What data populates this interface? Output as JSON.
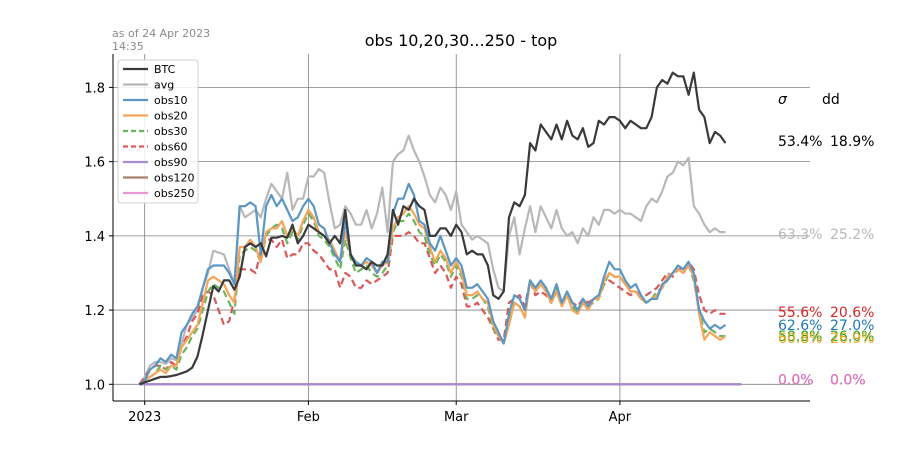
{
  "as_of": {
    "line1": "as of 24 Apr 2023",
    "line2": "14:35"
  },
  "chart_data": {
    "type": "line",
    "title": "obs 10,20,30...250 - top",
    "xlabel": "",
    "ylabel": "",
    "x_start": "2022-12-31",
    "x_end": "2023-04-24",
    "xlim": [
      "2022-12-26",
      "2023-05-07"
    ],
    "ylim": [
      0.955,
      1.89
    ],
    "x_ticks": [
      {
        "date": "2023-01-01",
        "label": "2023"
      },
      {
        "date": "2023-02-01",
        "label": "Feb"
      },
      {
        "date": "2023-03-01",
        "label": "Mar"
      },
      {
        "date": "2023-04-01",
        "label": "Apr"
      }
    ],
    "y_ticks": [
      1.0,
      1.2,
      1.4,
      1.6,
      1.8
    ],
    "y_tick_labels": [
      "1.0",
      "1.2",
      "1.4",
      "1.6",
      "1.8"
    ],
    "grid": true,
    "legend_position": "top-left",
    "stats_header": {
      "sigma": "σ",
      "dd": "dd"
    },
    "series": [
      {
        "name": "BTC",
        "color": "#3a3a3a",
        "dash": false,
        "values": [
          1.0,
          1.005,
          1.01,
          1.015,
          1.02,
          1.02,
          1.022,
          1.025,
          1.03,
          1.035,
          1.045,
          1.075,
          1.135,
          1.2,
          1.265,
          1.25,
          1.28,
          1.28,
          1.255,
          1.29,
          1.37,
          1.38,
          1.37,
          1.38,
          1.345,
          1.395,
          1.395,
          1.4,
          1.395,
          1.43,
          1.38,
          1.4,
          1.43,
          1.42,
          1.41,
          1.4,
          1.38,
          1.4,
          1.38,
          1.47,
          1.35,
          1.32,
          1.32,
          1.31,
          1.33,
          1.32,
          1.32,
          1.35,
          1.47,
          1.43,
          1.48,
          1.47,
          1.5,
          1.48,
          1.47,
          1.4,
          1.4,
          1.42,
          1.42,
          1.4,
          1.43,
          1.41,
          1.35,
          1.36,
          1.35,
          1.35,
          1.32,
          1.24,
          1.23,
          1.25,
          1.45,
          1.49,
          1.48,
          1.51,
          1.65,
          1.63,
          1.7,
          1.68,
          1.66,
          1.7,
          1.66,
          1.71,
          1.67,
          1.66,
          1.69,
          1.64,
          1.65,
          1.71,
          1.7,
          1.72,
          1.72,
          1.71,
          1.69,
          1.71,
          1.7,
          1.69,
          1.69,
          1.72,
          1.8,
          1.82,
          1.81,
          1.84,
          1.83,
          1.83,
          1.78,
          1.84,
          1.74,
          1.72,
          1.65,
          1.68,
          1.67,
          1.65
        ]
      },
      {
        "name": "avg",
        "color": "#b8b8b8",
        "dash": false,
        "values": [
          1.0,
          1.02,
          1.05,
          1.06,
          1.06,
          1.055,
          1.07,
          1.065,
          1.11,
          1.16,
          1.18,
          1.2,
          1.26,
          1.3,
          1.36,
          1.355,
          1.35,
          1.31,
          1.27,
          1.48,
          1.45,
          1.46,
          1.47,
          1.45,
          1.5,
          1.54,
          1.52,
          1.5,
          1.57,
          1.47,
          1.5,
          1.5,
          1.56,
          1.56,
          1.58,
          1.57,
          1.49,
          1.42,
          1.43,
          1.48,
          1.46,
          1.43,
          1.43,
          1.47,
          1.42,
          1.46,
          1.53,
          1.41,
          1.6,
          1.62,
          1.63,
          1.67,
          1.63,
          1.6,
          1.56,
          1.51,
          1.49,
          1.53,
          1.51,
          1.47,
          1.52,
          1.43,
          1.41,
          1.39,
          1.4,
          1.39,
          1.38,
          1.31,
          1.26,
          1.25,
          1.4,
          1.45,
          1.35,
          1.42,
          1.48,
          1.41,
          1.48,
          1.45,
          1.42,
          1.47,
          1.42,
          1.4,
          1.41,
          1.38,
          1.42,
          1.4,
          1.45,
          1.43,
          1.47,
          1.47,
          1.46,
          1.47,
          1.46,
          1.46,
          1.45,
          1.44,
          1.48,
          1.5,
          1.49,
          1.52,
          1.56,
          1.57,
          1.6,
          1.59,
          1.61,
          1.48,
          1.46,
          1.43,
          1.41,
          1.42,
          1.41,
          1.41
        ]
      },
      {
        "name": "obs10",
        "color": "#5b97c4",
        "dash": false,
        "values": [
          1.0,
          1.01,
          1.04,
          1.05,
          1.07,
          1.06,
          1.08,
          1.07,
          1.14,
          1.16,
          1.19,
          1.21,
          1.26,
          1.31,
          1.32,
          1.32,
          1.32,
          1.3,
          1.27,
          1.48,
          1.48,
          1.49,
          1.48,
          1.35,
          1.48,
          1.51,
          1.48,
          1.5,
          1.47,
          1.44,
          1.45,
          1.48,
          1.5,
          1.48,
          1.43,
          1.42,
          1.38,
          1.35,
          1.33,
          1.44,
          1.35,
          1.33,
          1.32,
          1.34,
          1.33,
          1.3,
          1.33,
          1.33,
          1.46,
          1.5,
          1.5,
          1.54,
          1.51,
          1.44,
          1.43,
          1.38,
          1.36,
          1.4,
          1.36,
          1.32,
          1.34,
          1.32,
          1.26,
          1.26,
          1.27,
          1.25,
          1.23,
          1.17,
          1.14,
          1.11,
          1.19,
          1.24,
          1.23,
          1.2,
          1.28,
          1.26,
          1.28,
          1.26,
          1.23,
          1.27,
          1.22,
          1.25,
          1.22,
          1.2,
          1.23,
          1.21,
          1.23,
          1.24,
          1.29,
          1.33,
          1.31,
          1.31,
          1.28,
          1.26,
          1.27,
          1.24,
          1.22,
          1.23,
          1.23,
          1.27,
          1.28,
          1.3,
          1.32,
          1.31,
          1.33,
          1.3,
          1.2,
          1.17,
          1.15,
          1.16,
          1.15,
          1.16
        ]
      },
      {
        "name": "obs20",
        "color": "#f5a55a",
        "dash": false,
        "values": [
          1.0,
          1.01,
          1.02,
          1.03,
          1.04,
          1.03,
          1.05,
          1.05,
          1.1,
          1.12,
          1.14,
          1.16,
          1.22,
          1.28,
          1.29,
          1.28,
          1.27,
          1.24,
          1.22,
          1.37,
          1.37,
          1.39,
          1.37,
          1.33,
          1.41,
          1.42,
          1.42,
          1.44,
          1.4,
          1.42,
          1.4,
          1.44,
          1.47,
          1.45,
          1.41,
          1.4,
          1.39,
          1.36,
          1.33,
          1.41,
          1.35,
          1.32,
          1.32,
          1.33,
          1.32,
          1.3,
          1.32,
          1.33,
          1.42,
          1.45,
          1.46,
          1.48,
          1.46,
          1.43,
          1.42,
          1.37,
          1.33,
          1.36,
          1.34,
          1.3,
          1.33,
          1.3,
          1.24,
          1.24,
          1.25,
          1.23,
          1.22,
          1.16,
          1.13,
          1.11,
          1.16,
          1.22,
          1.21,
          1.18,
          1.28,
          1.25,
          1.27,
          1.25,
          1.22,
          1.25,
          1.21,
          1.24,
          1.2,
          1.19,
          1.22,
          1.2,
          1.23,
          1.23,
          1.28,
          1.3,
          1.29,
          1.29,
          1.27,
          1.25,
          1.25,
          1.23,
          1.22,
          1.23,
          1.24,
          1.26,
          1.29,
          1.3,
          1.31,
          1.3,
          1.32,
          1.29,
          1.19,
          1.12,
          1.14,
          1.13,
          1.12,
          1.13
        ]
      },
      {
        "name": "obs30",
        "color": "#6ab55d",
        "dash": true,
        "values": [
          1.0,
          1.01,
          1.02,
          1.03,
          1.05,
          1.04,
          1.05,
          1.04,
          1.08,
          1.1,
          1.13,
          1.15,
          1.2,
          1.25,
          1.27,
          1.26,
          1.25,
          1.22,
          1.19,
          1.35,
          1.36,
          1.37,
          1.36,
          1.33,
          1.4,
          1.42,
          1.43,
          1.42,
          1.38,
          1.41,
          1.39,
          1.43,
          1.46,
          1.44,
          1.4,
          1.39,
          1.37,
          1.34,
          1.31,
          1.39,
          1.34,
          1.3,
          1.31,
          1.32,
          1.3,
          1.29,
          1.3,
          1.32,
          1.41,
          1.44,
          1.44,
          1.46,
          1.44,
          1.41,
          1.4,
          1.35,
          1.32,
          1.35,
          1.33,
          1.29,
          1.32,
          1.29,
          1.23,
          1.23,
          1.24,
          1.23,
          1.21,
          1.15,
          1.13,
          1.11,
          1.17,
          1.22,
          1.21,
          1.18,
          1.28,
          1.25,
          1.27,
          1.25,
          1.22,
          1.26,
          1.21,
          1.24,
          1.21,
          1.19,
          1.23,
          1.21,
          1.22,
          1.23,
          1.27,
          1.3,
          1.29,
          1.29,
          1.27,
          1.25,
          1.25,
          1.23,
          1.22,
          1.23,
          1.25,
          1.26,
          1.28,
          1.3,
          1.31,
          1.3,
          1.32,
          1.28,
          1.2,
          1.14,
          1.15,
          1.14,
          1.13,
          1.13
        ]
      },
      {
        "name": "obs60",
        "color": "#d9585a",
        "dash": true,
        "values": [
          1.0,
          1.02,
          1.04,
          1.05,
          1.05,
          1.04,
          1.06,
          1.05,
          1.1,
          1.13,
          1.17,
          1.19,
          1.24,
          1.25,
          1.24,
          1.2,
          1.16,
          1.17,
          1.23,
          1.31,
          1.31,
          1.31,
          1.3,
          1.36,
          1.39,
          1.39,
          1.37,
          1.39,
          1.34,
          1.35,
          1.35,
          1.38,
          1.38,
          1.36,
          1.35,
          1.33,
          1.31,
          1.31,
          1.26,
          1.3,
          1.29,
          1.26,
          1.26,
          1.28,
          1.27,
          1.28,
          1.29,
          1.3,
          1.4,
          1.4,
          1.4,
          1.41,
          1.4,
          1.38,
          1.38,
          1.34,
          1.3,
          1.32,
          1.3,
          1.26,
          1.29,
          1.27,
          1.21,
          1.21,
          1.22,
          1.2,
          1.18,
          1.15,
          1.12,
          1.12,
          1.22,
          1.23,
          1.24,
          1.21,
          1.28,
          1.24,
          1.25,
          1.24,
          1.22,
          1.25,
          1.22,
          1.24,
          1.22,
          1.21,
          1.23,
          1.22,
          1.23,
          1.24,
          1.27,
          1.28,
          1.27,
          1.26,
          1.25,
          1.24,
          1.25,
          1.24,
          1.24,
          1.25,
          1.26,
          1.28,
          1.3,
          1.29,
          1.31,
          1.31,
          1.33,
          1.31,
          1.24,
          1.2,
          1.19,
          1.2,
          1.19,
          1.19
        ]
      },
      {
        "name": "obs90",
        "color": "#a98bd0",
        "dash": false,
        "constant": 1.0
      },
      {
        "name": "obs120",
        "color": "#a87f6e",
        "dash": false,
        "constant": 1.0
      },
      {
        "name": "obs250",
        "color": "#e597cf",
        "dash": false,
        "constant": 1.0
      }
    ],
    "end_labels": [
      {
        "series": "BTC",
        "sigma": "53.4%",
        "dd": "18.9%",
        "color": "#000000",
        "y": 1.655
      },
      {
        "series": "avg",
        "sigma": "63.3%",
        "dd": "25.2%",
        "color": "#b8b8b8",
        "y": 1.405
      },
      {
        "series": "obs60",
        "sigma": "55.6%",
        "dd": "20.6%",
        "color": "#d62728",
        "y": 1.195
      },
      {
        "series": "obs10",
        "sigma": "62.6%",
        "dd": "27.0%",
        "color": "#1f77b4",
        "y": 1.16
      },
      {
        "series": "obs30",
        "sigma": "58.8%",
        "dd": "26.0%",
        "color": "#2ca02c",
        "y": 1.13
      },
      {
        "series": "obs20",
        "sigma": "60.8%",
        "dd": "26.9%",
        "color": "#e6a817",
        "y": 1.125
      },
      {
        "series": "obs120",
        "sigma": "0.0%",
        "dd": "0.0%",
        "color": "#b07050",
        "y": 1.013
      },
      {
        "series": "obs90",
        "sigma": "0.0%",
        "dd": "0.0%",
        "color": "#9467bd",
        "y": 1.013
      },
      {
        "series": "obs250",
        "sigma": "0.0%",
        "dd": "0.0%",
        "color": "#e377c2",
        "y": 1.013
      }
    ]
  }
}
